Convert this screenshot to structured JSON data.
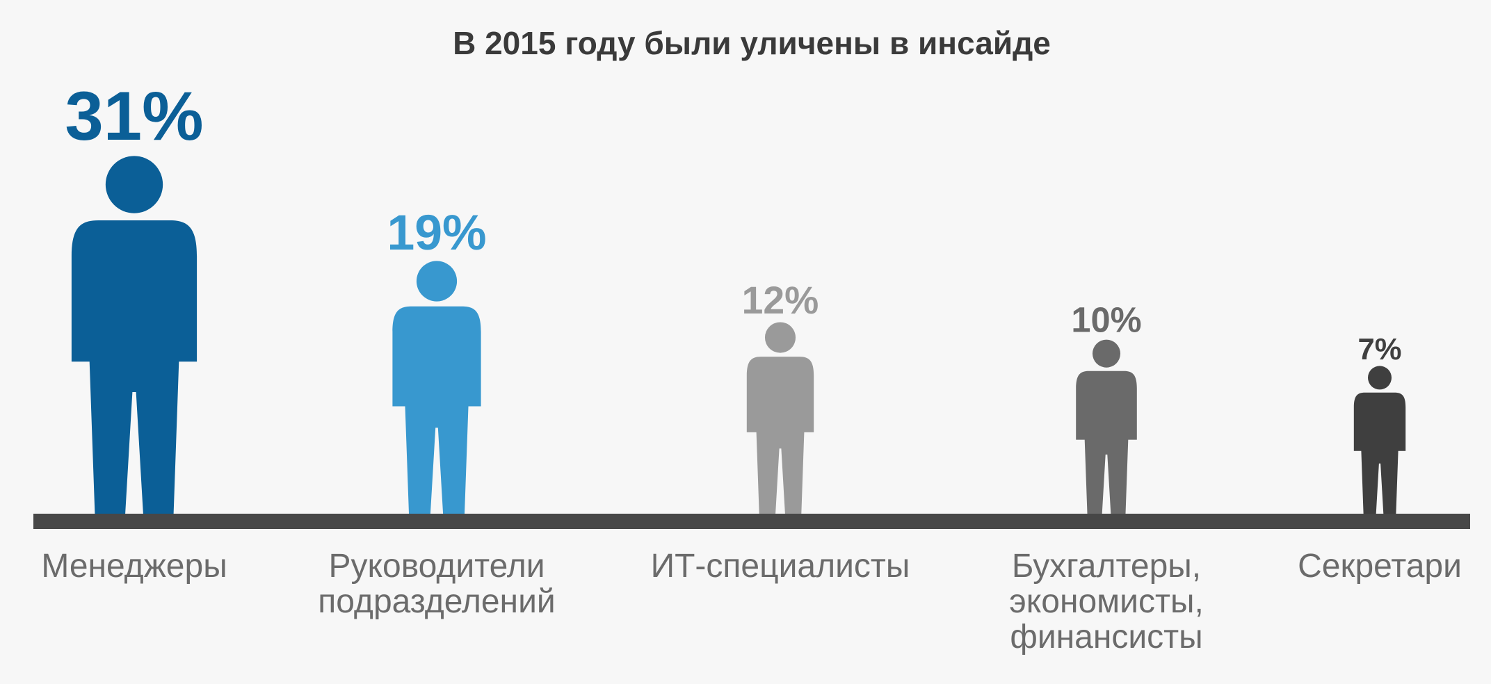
{
  "chart_data": {
    "type": "pictogram",
    "title": "В 2015 году были уличены в инсайде",
    "categories": [
      "Менеджеры",
      "Руководители подразделений",
      "ИТ-специалисты",
      "Бухгалтеры, экономисты, финансисты",
      "Секретари"
    ],
    "values": [
      31,
      19,
      12,
      10,
      7
    ],
    "value_labels": [
      "31%",
      "19%",
      "12%",
      "10%",
      "7%"
    ],
    "colors": [
      "#0b5f97",
      "#3898cf",
      "#9a9a9a",
      "#6a6a6a",
      "#3f3f3f"
    ]
  }
}
